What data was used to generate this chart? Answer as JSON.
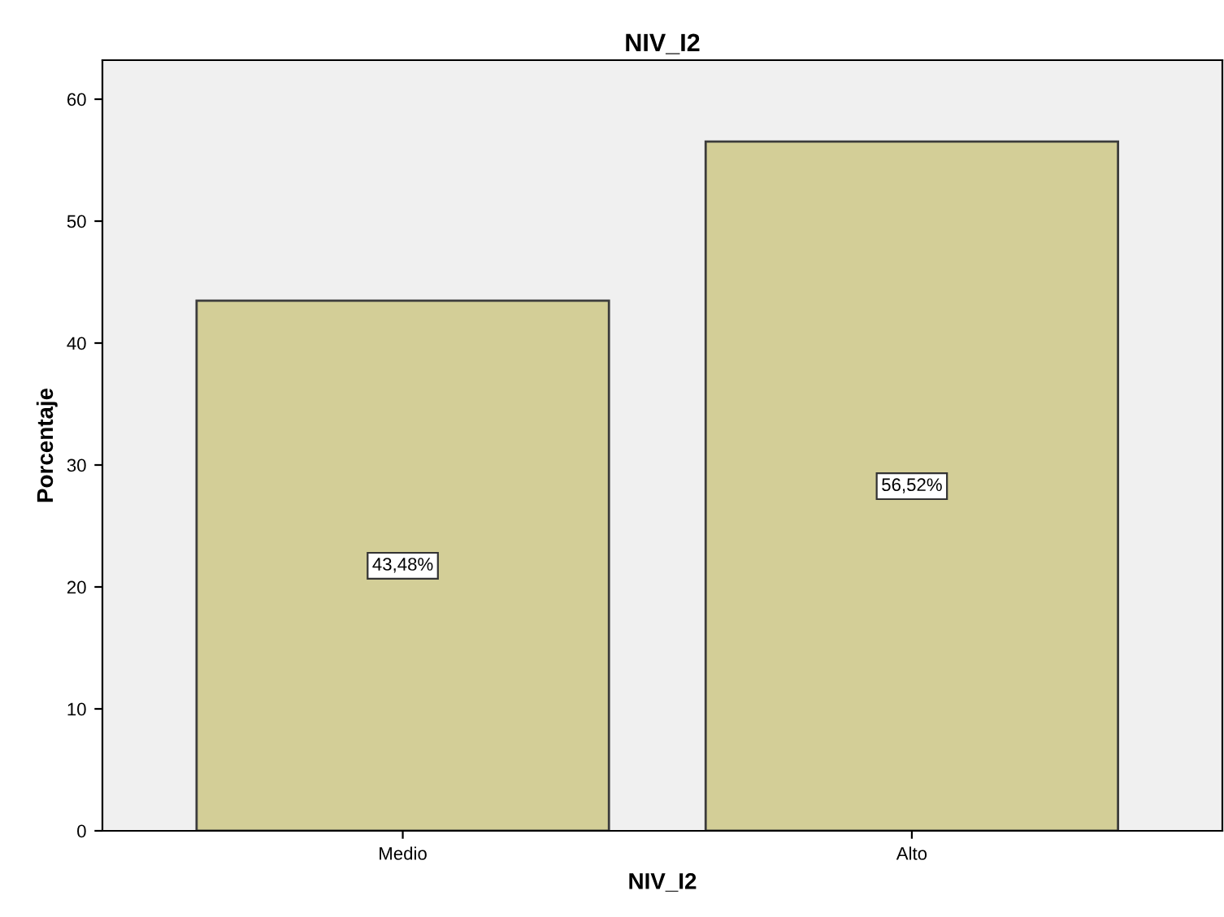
{
  "chart_data": {
    "type": "bar",
    "title": "NIV_I2",
    "xlabel": "NIV_I2",
    "ylabel": "Porcentaje",
    "categories": [
      "Medio",
      "Alto"
    ],
    "values": [
      43.48,
      56.52
    ],
    "value_labels": [
      "43,48%",
      "56,52%"
    ],
    "color": "#d3ce97",
    "ylim": [
      0,
      63.2
    ],
    "yticks": [
      0,
      10,
      20,
      30,
      40,
      50,
      60
    ],
    "grid": false,
    "legend": false
  }
}
